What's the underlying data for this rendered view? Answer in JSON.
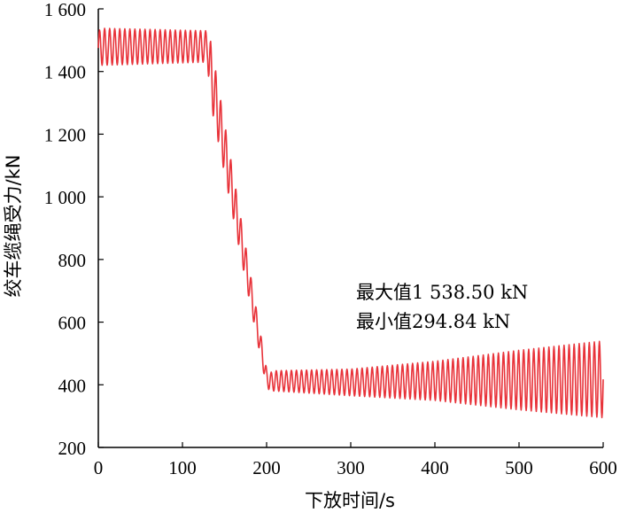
{
  "chart_data": {
    "type": "line",
    "title": "",
    "xlabel": "下放时间/s",
    "ylabel": "绞车缆绳受力/kN",
    "xlim": [
      0,
      600
    ],
    "ylim": [
      200,
      1600
    ],
    "x_ticks": [
      0,
      100,
      200,
      300,
      400,
      500,
      600
    ],
    "x_tick_labels": [
      "0",
      "100",
      "200",
      "300",
      "400",
      "500",
      "600"
    ],
    "y_ticks": [
      200,
      400,
      600,
      800,
      1000,
      1200,
      1400,
      1600
    ],
    "y_tick_labels": [
      "200",
      "400",
      "600",
      "800",
      "1 000",
      "1 200",
      "1 400",
      "1 600"
    ],
    "grid": false,
    "series": [
      {
        "name": "",
        "color": "#e8333a",
        "envelope": {
          "x": [
            0,
            5,
            130,
            132,
            200,
            205,
            210,
            300,
            400,
            500,
            600
          ],
          "upper": [
            1530,
            1538,
            1530,
            1520,
            450,
            440,
            445,
            450,
            475,
            510,
            540
          ],
          "lower": [
            1420,
            1420,
            1430,
            1320,
            390,
            380,
            380,
            365,
            350,
            320,
            295
          ]
        },
        "oscillation_period": 6
      }
    ],
    "annotations": [
      "最大值1 538.50 kN",
      "最小值294.84 kN"
    ]
  }
}
